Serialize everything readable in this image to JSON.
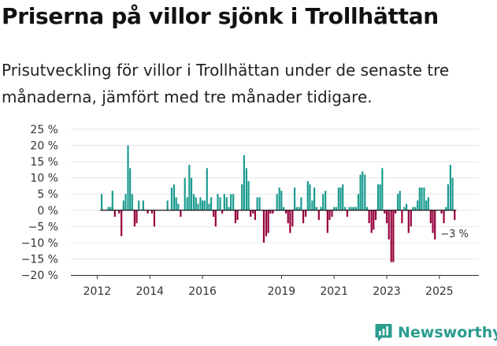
{
  "title": "Priserna på villor sjönk i Trollhättan",
  "subtitle": "Prisutveckling för villor i Trollhättan under de senaste tre månaderna, jämfört med tre månader tidigare.",
  "brand": {
    "name": "Newsworthy",
    "logo_icon": "newsworthy-logo-icon"
  },
  "colors": {
    "positive": "#1a9b8f",
    "negative": "#96003a",
    "grid": "#e6e6e6",
    "axis": "#333333"
  },
  "chart_data": {
    "type": "bar",
    "title": "Priserna på villor sjönk i Trollhättan",
    "xlabel": "",
    "ylabel": "",
    "ylim": [
      -20,
      25
    ],
    "yticks": [
      25,
      20,
      15,
      10,
      5,
      0,
      -5,
      -10,
      -15,
      -20
    ],
    "ytick_labels": [
      "25 %",
      "20 %",
      "15 %",
      "10 %",
      "5 %",
      "0 %",
      "−5 %",
      "−10 %",
      "−15 %",
      "−20 %"
    ],
    "x_range": [
      2011.0,
      2026.5
    ],
    "xticks": [
      2012,
      2014,
      2016,
      2019,
      2021,
      2023,
      2025
    ],
    "xtick_labels": [
      "2012",
      "2014",
      "2016",
      "2019",
      "2021",
      "2023",
      "2025"
    ],
    "end_label": "−3 %",
    "grid": true,
    "frequency": "monthly",
    "series": [
      {
        "name": "Prisutveckling",
        "points": [
          {
            "x": 2012.17,
            "y": 5
          },
          {
            "x": 2012.42,
            "y": 1
          },
          {
            "x": 2012.5,
            "y": 1
          },
          {
            "x": 2012.58,
            "y": 6
          },
          {
            "x": 2012.67,
            "y": -2
          },
          {
            "x": 2012.83,
            "y": -1
          },
          {
            "x": 2012.92,
            "y": -8
          },
          {
            "x": 2013.0,
            "y": 3
          },
          {
            "x": 2013.08,
            "y": 5
          },
          {
            "x": 2013.17,
            "y": 20
          },
          {
            "x": 2013.25,
            "y": 13
          },
          {
            "x": 2013.33,
            "y": 5
          },
          {
            "x": 2013.42,
            "y": -5
          },
          {
            "x": 2013.5,
            "y": -4
          },
          {
            "x": 2013.58,
            "y": 3
          },
          {
            "x": 2013.75,
            "y": 3
          },
          {
            "x": 2013.92,
            "y": -1
          },
          {
            "x": 2014.08,
            "y": -1
          },
          {
            "x": 2014.17,
            "y": -5
          },
          {
            "x": 2014.67,
            "y": 3
          },
          {
            "x": 2014.83,
            "y": 7
          },
          {
            "x": 2014.92,
            "y": 8
          },
          {
            "x": 2015.0,
            "y": 4
          },
          {
            "x": 2015.08,
            "y": 2
          },
          {
            "x": 2015.17,
            "y": -2
          },
          {
            "x": 2015.33,
            "y": 10
          },
          {
            "x": 2015.42,
            "y": 4
          },
          {
            "x": 2015.5,
            "y": 14
          },
          {
            "x": 2015.58,
            "y": 10
          },
          {
            "x": 2015.67,
            "y": 5
          },
          {
            "x": 2015.75,
            "y": 4
          },
          {
            "x": 2015.83,
            "y": 2
          },
          {
            "x": 2015.92,
            "y": 4
          },
          {
            "x": 2016.0,
            "y": 3
          },
          {
            "x": 2016.08,
            "y": 3
          },
          {
            "x": 2016.17,
            "y": 13
          },
          {
            "x": 2016.25,
            "y": 2
          },
          {
            "x": 2016.33,
            "y": 4
          },
          {
            "x": 2016.42,
            "y": -2
          },
          {
            "x": 2016.5,
            "y": -5
          },
          {
            "x": 2016.58,
            "y": 5
          },
          {
            "x": 2016.67,
            "y": 4
          },
          {
            "x": 2016.75,
            "y": -1
          },
          {
            "x": 2016.83,
            "y": 5
          },
          {
            "x": 2016.92,
            "y": 4
          },
          {
            "x": 2017.0,
            "y": 1
          },
          {
            "x": 2017.08,
            "y": 5
          },
          {
            "x": 2017.17,
            "y": 5
          },
          {
            "x": 2017.25,
            "y": -4
          },
          {
            "x": 2017.33,
            "y": -3
          },
          {
            "x": 2017.5,
            "y": 8
          },
          {
            "x": 2017.58,
            "y": 17
          },
          {
            "x": 2017.67,
            "y": 13
          },
          {
            "x": 2017.75,
            "y": 9
          },
          {
            "x": 2017.83,
            "y": -2
          },
          {
            "x": 2017.92,
            "y": -1
          },
          {
            "x": 2018.0,
            "y": -3
          },
          {
            "x": 2018.08,
            "y": 4
          },
          {
            "x": 2018.17,
            "y": 4
          },
          {
            "x": 2018.33,
            "y": -10
          },
          {
            "x": 2018.42,
            "y": -8
          },
          {
            "x": 2018.5,
            "y": -7
          },
          {
            "x": 2018.58,
            "y": -1
          },
          {
            "x": 2018.67,
            "y": -1
          },
          {
            "x": 2018.83,
            "y": 5
          },
          {
            "x": 2018.92,
            "y": 7
          },
          {
            "x": 2019.0,
            "y": 6
          },
          {
            "x": 2019.08,
            "y": 1
          },
          {
            "x": 2019.17,
            "y": -1
          },
          {
            "x": 2019.25,
            "y": -4
          },
          {
            "x": 2019.33,
            "y": -7
          },
          {
            "x": 2019.42,
            "y": -5
          },
          {
            "x": 2019.5,
            "y": 7
          },
          {
            "x": 2019.58,
            "y": 1
          },
          {
            "x": 2019.67,
            "y": 1
          },
          {
            "x": 2019.75,
            "y": 4
          },
          {
            "x": 2019.83,
            "y": -4
          },
          {
            "x": 2019.92,
            "y": -2
          },
          {
            "x": 2020.0,
            "y": 9
          },
          {
            "x": 2020.08,
            "y": 8
          },
          {
            "x": 2020.17,
            "y": 3
          },
          {
            "x": 2020.25,
            "y": 7
          },
          {
            "x": 2020.33,
            "y": 1
          },
          {
            "x": 2020.42,
            "y": -3
          },
          {
            "x": 2020.5,
            "y": 1
          },
          {
            "x": 2020.58,
            "y": 5
          },
          {
            "x": 2020.67,
            "y": 6
          },
          {
            "x": 2020.75,
            "y": -7
          },
          {
            "x": 2020.83,
            "y": -3
          },
          {
            "x": 2020.92,
            "y": -2
          },
          {
            "x": 2021.0,
            "y": 1
          },
          {
            "x": 2021.08,
            "y": 1
          },
          {
            "x": 2021.17,
            "y": 7
          },
          {
            "x": 2021.25,
            "y": 7
          },
          {
            "x": 2021.33,
            "y": 8
          },
          {
            "x": 2021.42,
            "y": 1
          },
          {
            "x": 2021.5,
            "y": -2
          },
          {
            "x": 2021.58,
            "y": 1
          },
          {
            "x": 2021.67,
            "y": 1
          },
          {
            "x": 2021.75,
            "y": 1
          },
          {
            "x": 2021.83,
            "y": 1
          },
          {
            "x": 2021.92,
            "y": 5
          },
          {
            "x": 2022.0,
            "y": 11
          },
          {
            "x": 2022.08,
            "y": 12
          },
          {
            "x": 2022.17,
            "y": 11
          },
          {
            "x": 2022.25,
            "y": 1
          },
          {
            "x": 2022.33,
            "y": -4
          },
          {
            "x": 2022.42,
            "y": -7
          },
          {
            "x": 2022.5,
            "y": -6
          },
          {
            "x": 2022.58,
            "y": -3
          },
          {
            "x": 2022.67,
            "y": 8
          },
          {
            "x": 2022.75,
            "y": 8
          },
          {
            "x": 2022.83,
            "y": 13
          },
          {
            "x": 2022.92,
            "y": -1
          },
          {
            "x": 2023.0,
            "y": -4
          },
          {
            "x": 2023.08,
            "y": -9
          },
          {
            "x": 2023.17,
            "y": -16
          },
          {
            "x": 2023.25,
            "y": -16
          },
          {
            "x": 2023.33,
            "y": -1
          },
          {
            "x": 2023.42,
            "y": 5
          },
          {
            "x": 2023.5,
            "y": 6
          },
          {
            "x": 2023.58,
            "y": -4
          },
          {
            "x": 2023.67,
            "y": 1
          },
          {
            "x": 2023.75,
            "y": 2
          },
          {
            "x": 2023.83,
            "y": -7
          },
          {
            "x": 2023.92,
            "y": -5
          },
          {
            "x": 2024.0,
            "y": 1
          },
          {
            "x": 2024.08,
            "y": 1
          },
          {
            "x": 2024.17,
            "y": 3
          },
          {
            "x": 2024.25,
            "y": 7
          },
          {
            "x": 2024.33,
            "y": 7
          },
          {
            "x": 2024.42,
            "y": 7
          },
          {
            "x": 2024.5,
            "y": 3
          },
          {
            "x": 2024.58,
            "y": 4
          },
          {
            "x": 2024.67,
            "y": -4
          },
          {
            "x": 2024.75,
            "y": -7
          },
          {
            "x": 2024.83,
            "y": -9
          },
          {
            "x": 2025.08,
            "y": -1
          },
          {
            "x": 2025.17,
            "y": -4
          },
          {
            "x": 2025.25,
            "y": 1
          },
          {
            "x": 2025.33,
            "y": 8
          },
          {
            "x": 2025.42,
            "y": 14
          },
          {
            "x": 2025.5,
            "y": 10
          },
          {
            "x": 2025.58,
            "y": -3
          }
        ]
      }
    ]
  }
}
